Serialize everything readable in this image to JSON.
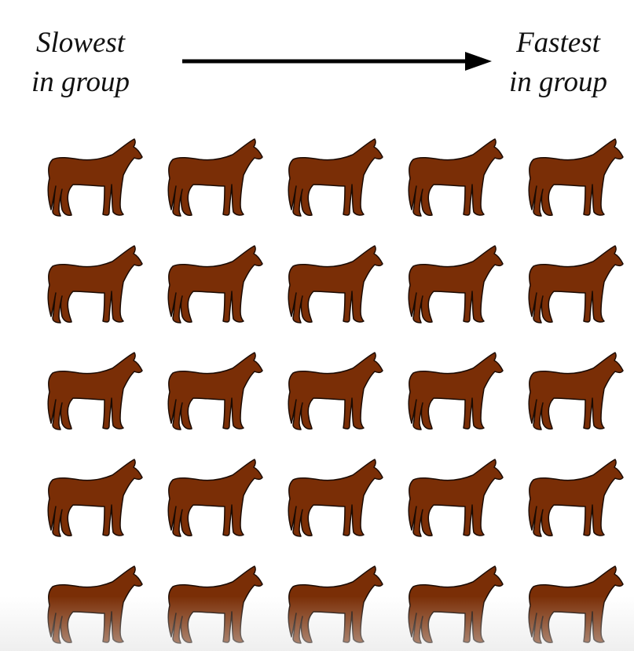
{
  "labels": {
    "left": [
      "Slowest",
      "in group"
    ],
    "right": [
      "Fastest",
      "in group"
    ]
  },
  "grid": {
    "rows": 5,
    "columns": 5
  },
  "colors": {
    "horse_fill": "#7a2e06",
    "horse_stroke": "#1a0a02",
    "arrow": "#000000"
  },
  "icons": {
    "horse": "horse-icon",
    "arrow": "arrow-right-icon"
  }
}
